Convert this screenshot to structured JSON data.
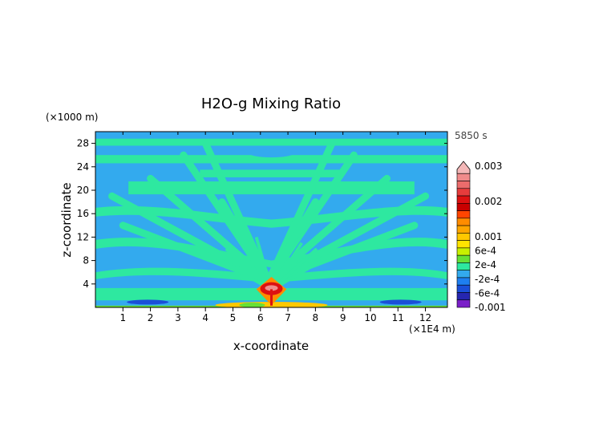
{
  "chart_data": {
    "type": "heatmap",
    "title": "H2O-g Mixing Ratio",
    "time_label": "5850 s",
    "xlabel": "x-coordinate",
    "ylabel": "z-coordinate",
    "x_unit_label": "(×1E4 m)",
    "y_unit_label": "(×1000 m)",
    "xlim": [
      0,
      12.8
    ],
    "ylim": [
      0,
      30
    ],
    "x_ticks": [
      1,
      2,
      3,
      4,
      5,
      6,
      7,
      8,
      9,
      10,
      11,
      12
    ],
    "y_ticks": [
      4,
      8,
      12,
      16,
      20,
      24,
      28
    ],
    "grid": false,
    "colorbar": {
      "placement": "right",
      "min": -0.001,
      "max": 0.003,
      "labels": [
        "0.003",
        "0.002",
        "0.001",
        "6e-4",
        "2e-4",
        "-2e-4",
        "-6e-4",
        "-0.001"
      ],
      "levels": [
        {
          "value": 0.003,
          "color": "#f4b8b8"
        },
        {
          "value": 0.0027,
          "color": "#f08b8b"
        },
        {
          "value": 0.0025,
          "color": "#ec6c6c"
        },
        {
          "value": 0.0022,
          "color": "#e63c3c"
        },
        {
          "value": 0.002,
          "color": "#dd1111"
        },
        {
          "value": 0.0017,
          "color": "#c80000"
        },
        {
          "value": 0.0015,
          "color": "#ff4500"
        },
        {
          "value": 0.0012,
          "color": "#ff8c00"
        },
        {
          "value": 0.001,
          "color": "#ffa500"
        },
        {
          "value": 0.0008,
          "color": "#ffc800"
        },
        {
          "value": 0.0006,
          "color": "#ffe400"
        },
        {
          "value": 0.0004,
          "color": "#c8f000"
        },
        {
          "value": 0.0002,
          "color": "#66e035"
        },
        {
          "value": 0.0,
          "color": "#2ee8a0"
        },
        {
          "value": -0.0002,
          "color": "#33aaee"
        },
        {
          "value": -0.0004,
          "color": "#1e7ff0"
        },
        {
          "value": -0.0006,
          "color": "#1a4fd8"
        },
        {
          "value": -0.0008,
          "color": "#2626b0"
        },
        {
          "value": -0.001,
          "color": "#7a1fc8"
        }
      ]
    },
    "field_colors": {
      "background": "#33aaee",
      "band": "#2ee8a0",
      "plume_low": "#66e035",
      "plume_high": "#ffc800",
      "core_outer": "#ff8c00",
      "core_inner": "#dd1111",
      "core_peak": "#f08b8b",
      "negative": "#1a4fd8"
    }
  }
}
